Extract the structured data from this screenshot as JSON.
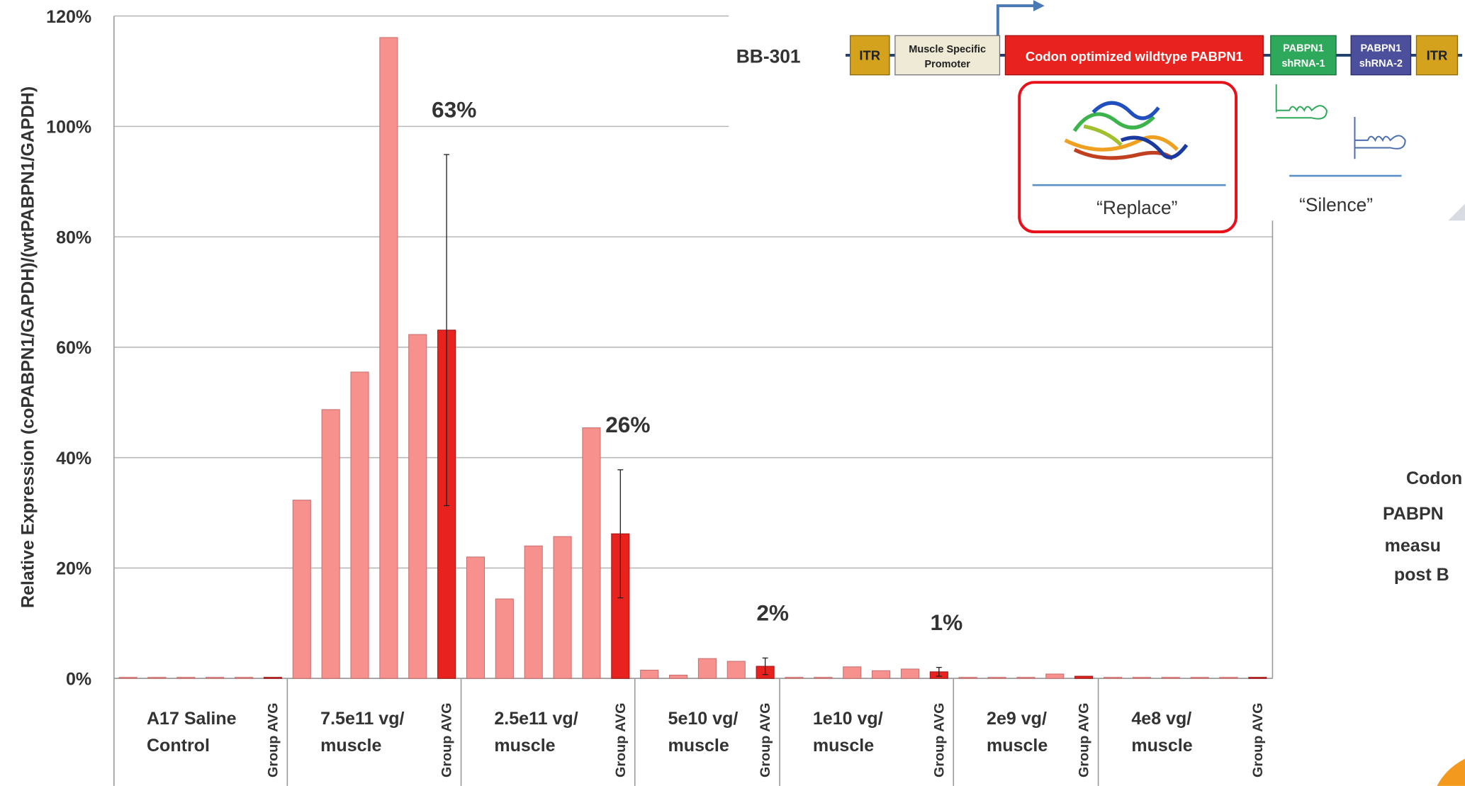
{
  "chart_data": {
    "type": "bar",
    "y_label": "Relative Expression (coPABPN1/GAPDH)/(wtPABPN1/GAPDH)",
    "categories": [
      null,
      null,
      null,
      null,
      null,
      "Group AVG",
      null,
      null,
      null,
      null,
      null,
      "Group AVG",
      null,
      null,
      null,
      null,
      null,
      "Group AVG",
      null,
      null,
      null,
      null,
      "Group AVG",
      null,
      null,
      null,
      null,
      null,
      "Group AVG",
      null,
      null,
      null,
      null,
      "Group AVG",
      null,
      null,
      null,
      null,
      null,
      "Group AVG"
    ],
    "values": [
      0.2,
      0.2,
      0.2,
      0.2,
      0.2,
      0.2,
      32.3,
      48.7,
      55.5,
      116.1,
      62.3,
      63.1,
      22.0,
      14.4,
      24.0,
      25.7,
      45.4,
      26.2,
      1.5,
      0.6,
      3.6,
      3.1,
      2.2,
      0.2,
      0.2,
      2.1,
      1.4,
      1.7,
      1.2,
      0.2,
      0.2,
      0.2,
      0.8,
      0.4,
      0.2,
      0.2,
      0.2,
      0.2,
      0.2,
      0.2
    ],
    "errors": [
      null,
      null,
      null,
      null,
      null,
      null,
      null,
      null,
      null,
      null,
      null,
      31.8,
      null,
      null,
      null,
      null,
      null,
      11.6,
      null,
      null,
      null,
      null,
      1.5,
      null,
      null,
      null,
      null,
      null,
      0.8,
      null,
      null,
      null,
      null,
      null,
      null,
      null,
      null,
      null,
      null,
      null
    ],
    "value_labels": [
      null,
      null,
      null,
      null,
      null,
      null,
      null,
      null,
      null,
      null,
      null,
      "63%",
      null,
      null,
      null,
      null,
      null,
      "26%",
      null,
      null,
      null,
      null,
      "2%",
      null,
      null,
      null,
      null,
      null,
      "1%",
      null,
      null,
      null,
      null,
      null,
      null,
      null,
      null,
      null,
      null,
      null
    ],
    "group_labels": [
      [
        "A17 Saline",
        "Control"
      ],
      [
        "7.5e11 vg/",
        "muscle"
      ],
      [
        "2.5e11 vg/",
        "muscle"
      ],
      [
        "5e10 vg/",
        "muscle"
      ],
      [
        "1e10 vg/",
        "muscle"
      ],
      [
        "2e9 vg/",
        "muscle"
      ],
      [
        "4e8 vg/",
        "muscle"
      ]
    ],
    "color": "#f7918d",
    "avg_color": "#e8231f",
    "ylim": [
      0,
      120
    ],
    "yticks": [
      {
        "value": 0,
        "label": "0%"
      },
      {
        "value": 20,
        "label": "20%"
      },
      {
        "value": 40,
        "label": "40%"
      },
      {
        "value": 60,
        "label": "60%"
      },
      {
        "value": 80,
        "label": "80%"
      },
      {
        "value": 100,
        "label": "100%"
      },
      {
        "value": 120,
        "label": "120%"
      }
    ],
    "grid": true
  },
  "diagram": {
    "name": "BB-301",
    "itr_left": "ITR",
    "promoter": [
      "Muscle Specific",
      "Promoter"
    ],
    "transgene": "Codon optimized wildtype PABPN1",
    "shrna1": [
      "PABPN1",
      "shRNA-1"
    ],
    "shrna2": [
      "PABPN1",
      "shRNA-2"
    ],
    "itr_right": "ITR",
    "replace": "“Replace”",
    "silence": "“Silence”"
  },
  "side_text": [
    "Codon",
    "PABPN",
    "measu",
    "post B"
  ]
}
